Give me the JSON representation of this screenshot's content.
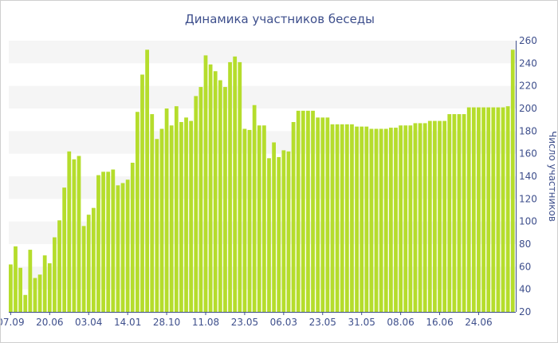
{
  "chart_data": {
    "type": "bar",
    "title": "Динамика участников беседы",
    "xlabel": "",
    "ylabel": "Число участников",
    "ylim": [
      20,
      260
    ],
    "yticks": [
      20,
      40,
      60,
      80,
      100,
      120,
      140,
      160,
      180,
      200,
      220,
      240,
      260
    ],
    "grid": "alternating horizontal bands",
    "y_axis_position": "right",
    "bar_color": "#b5dd2c",
    "band_color": "#f5f5f5",
    "text_color": "#3e4f8c",
    "x_tick_labels": [
      {
        "label": "07.09",
        "index": 0
      },
      {
        "label": "20.06",
        "index": 8
      },
      {
        "label": "03.04",
        "index": 16
      },
      {
        "label": "14.01",
        "index": 24
      },
      {
        "label": "28.10",
        "index": 32
      },
      {
        "label": "11.08",
        "index": 40
      },
      {
        "label": "23.05",
        "index": 48
      },
      {
        "label": "06.03",
        "index": 56
      },
      {
        "label": "23.05",
        "index": 64
      },
      {
        "label": "31.05",
        "index": 72
      },
      {
        "label": "08.06",
        "index": 80
      },
      {
        "label": "16.06",
        "index": 88
      },
      {
        "label": "24.06",
        "index": 96
      }
    ],
    "values": [
      62,
      78,
      59,
      35,
      75,
      50,
      53,
      70,
      63,
      86,
      101,
      130,
      162,
      155,
      158,
      96,
      106,
      112,
      141,
      144,
      144,
      146,
      132,
      134,
      137,
      152,
      197,
      230,
      252,
      195,
      173,
      182,
      200,
      185,
      202,
      188,
      192,
      189,
      211,
      219,
      247,
      239,
      233,
      225,
      219,
      241,
      246,
      241,
      182,
      181,
      203,
      185,
      185,
      156,
      170,
      157,
      163,
      162,
      188,
      198,
      198,
      198,
      198,
      192,
      192,
      192,
      186,
      186,
      186,
      186,
      186,
      184,
      184,
      184,
      182,
      182,
      182,
      182,
      183,
      183,
      185,
      185,
      185,
      187,
      187,
      187,
      189,
      189,
      189,
      189,
      195,
      195,
      195,
      195,
      201,
      201,
      201,
      201,
      201,
      201,
      201,
      201,
      202,
      252
    ]
  }
}
